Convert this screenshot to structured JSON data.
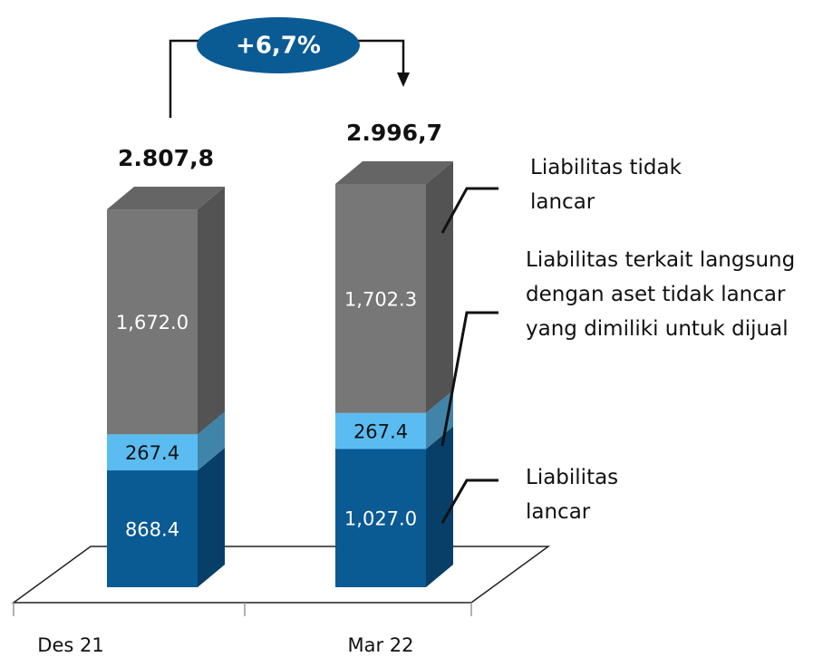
{
  "chart_data": {
    "type": "bar",
    "stacked": true,
    "categories": [
      "Des 21",
      "Mar 22"
    ],
    "series": [
      {
        "name": "Liabilitas lancar",
        "color": "#0a5a94",
        "values": [
          868.4,
          1027.0
        ],
        "value_labels": [
          "868.4",
          "1,027.0"
        ]
      },
      {
        "name": "Liabilitas terkait langsung dengan aset tidak lancar yang dimiliki untuk dijual",
        "color": "#5bbcf2",
        "values": [
          267.4,
          267.4
        ]
      },
      {
        "name": "Liabilitas tidak lancar",
        "color": "#777777",
        "values": [
          1672.0,
          1702.3
        ],
        "value_labels": [
          "1,672.0",
          "1,702.3"
        ]
      }
    ],
    "totals": [
      2807.8,
      2996.7
    ],
    "total_labels": [
      "2.807,8",
      "2.996,7"
    ],
    "annotation": "+6,7%"
  }
}
